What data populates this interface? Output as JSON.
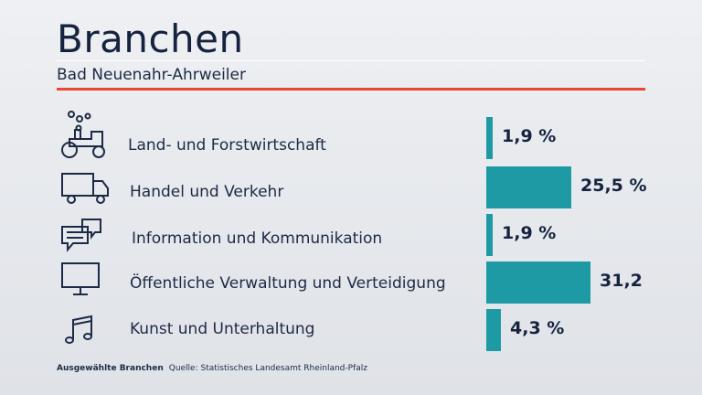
{
  "header": {
    "title": "Branchen",
    "subtitle": "Bad Neuenahr-Ahrweiler"
  },
  "footer": {
    "left": "Ausgewählte Branchen",
    "source": "Quelle: Statistisches Landesamt Rheinland-Pfalz"
  },
  "colors": {
    "bar": "#1e9aa5",
    "accent_rule": "#e8473a",
    "text": "#16233f"
  },
  "chart_data": {
    "type": "bar",
    "orientation": "horizontal",
    "categories": [
      "Land- und Forstwirtschaft",
      "Handel und Verkehr",
      "Information und Kommunikation",
      "Öffentliche Verwaltung und Verteidigung",
      "Kunst und Unterhaltung"
    ],
    "values": [
      1.9,
      25.5,
      1.9,
      31.2,
      4.3
    ],
    "value_labels": [
      "1,9 %",
      "25,5 %",
      "1,9 %",
      "31,2",
      "4,3 %"
    ],
    "icons": [
      "tractor-icon",
      "truck-icon",
      "speech-bubbles-icon",
      "monitor-icon",
      "music-note-icon"
    ],
    "unit": "%",
    "xlim": [
      0,
      31.2
    ]
  }
}
